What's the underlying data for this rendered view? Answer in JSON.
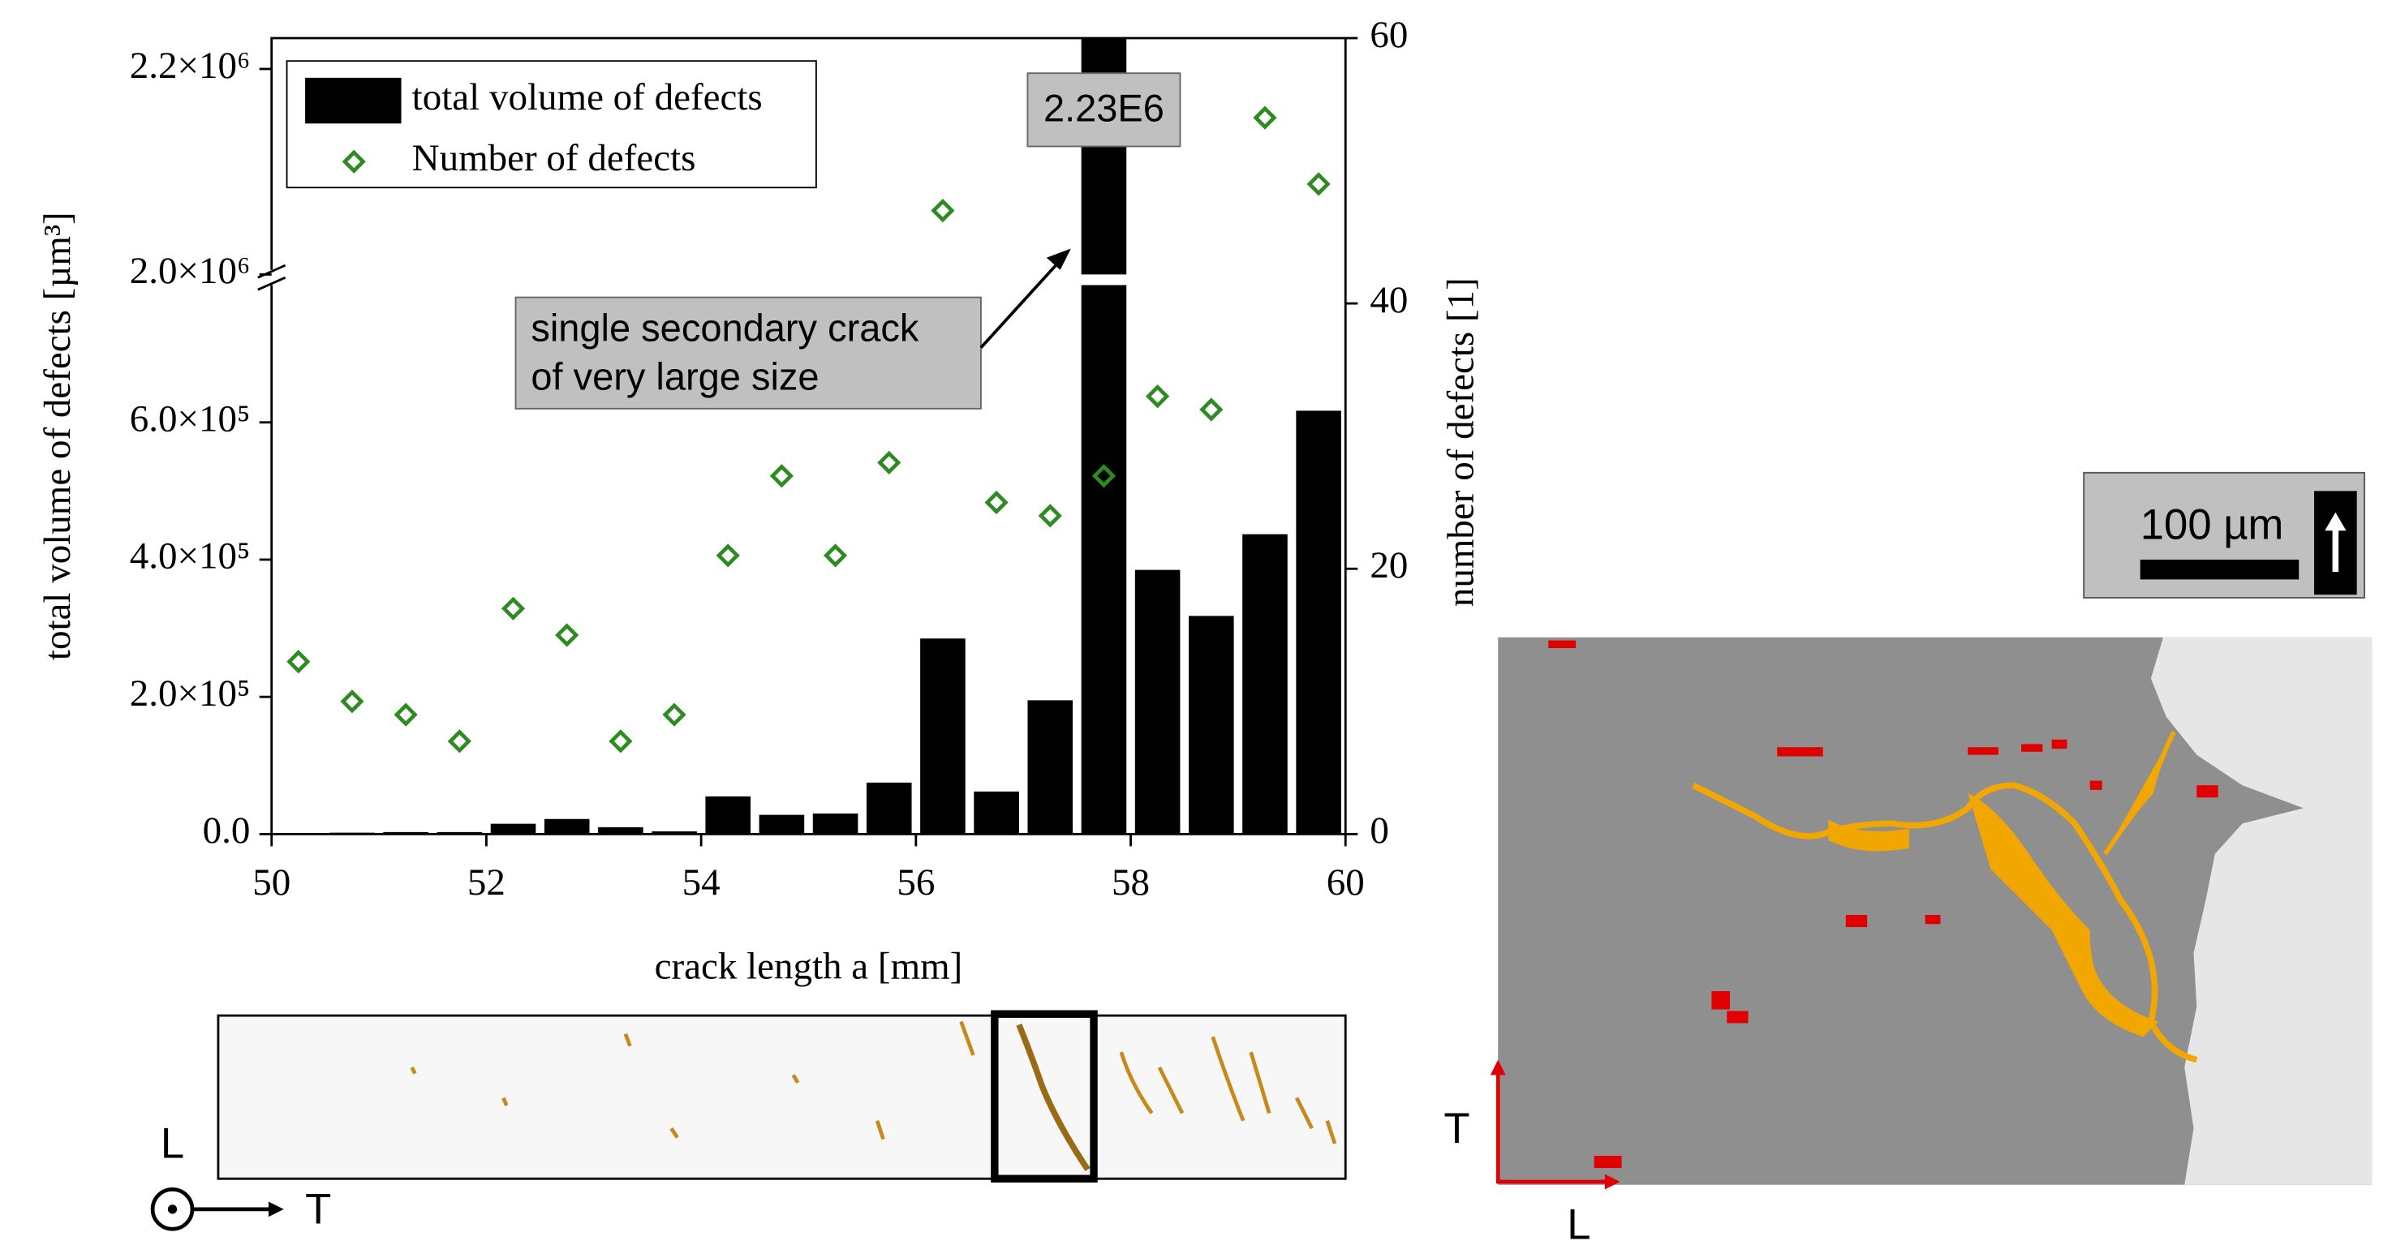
{
  "chart_data": {
    "type": "bar",
    "x": [
      50.25,
      50.75,
      51.25,
      51.75,
      52.25,
      52.75,
      53.25,
      53.75,
      54.25,
      54.75,
      55.25,
      55.75,
      56.25,
      56.75,
      57.25,
      57.75,
      58.25,
      58.75,
      59.25,
      59.75
    ],
    "xlim": [
      50,
      60
    ],
    "xticks": [
      50,
      52,
      54,
      56,
      58,
      60
    ],
    "xlabel": "crack length a [mm]",
    "ylabel": "total volume of defects [µm³]",
    "y2label": "number of defects [1]",
    "ylim": [
      0,
      2230000
    ],
    "y_break": [
      800000,
      2000000
    ],
    "yticks": [
      {
        "value": 0,
        "label": "0.0"
      },
      {
        "value": 200000,
        "label": "2.0×10⁵"
      },
      {
        "value": 400000,
        "label": "4.0×10⁵"
      },
      {
        "value": 600000,
        "label": "6.0×10⁵"
      },
      {
        "value": 2000000,
        "label": "2.0×10⁶"
      },
      {
        "value": 2200000,
        "label": "2.2×10⁶"
      }
    ],
    "y2lim": [
      0,
      60
    ],
    "y2ticks": [
      0,
      20,
      40,
      60
    ],
    "legend": "upper left",
    "series": [
      {
        "name": "total volume of defects",
        "type": "bar",
        "color": "#000000",
        "values": [
          0,
          2000,
          3000,
          3000,
          15000,
          22000,
          10000,
          4000,
          55000,
          28000,
          30000,
          75000,
          285000,
          62000,
          195000,
          2230000,
          385000,
          318000,
          437000,
          617000
        ]
      },
      {
        "name": "Number of defects",
        "type": "scatter",
        "marker": "diamond",
        "color": "#2e8b22",
        "axis": "y2",
        "values": [
          13,
          10,
          9,
          7,
          17,
          15,
          7,
          9,
          21,
          27,
          21,
          28,
          47,
          25,
          24,
          27,
          33,
          32,
          54,
          49
        ]
      }
    ],
    "annotations": [
      {
        "text": [
          "2.23E6"
        ]
      },
      {
        "text": [
          "single secondary crack",
          "of very large size"
        ]
      }
    ]
  },
  "figure_labels": {
    "strip_axes": [
      "L",
      "T"
    ],
    "micrograph_axes": [
      "T",
      "L"
    ],
    "scale_bar": "100 µm"
  }
}
